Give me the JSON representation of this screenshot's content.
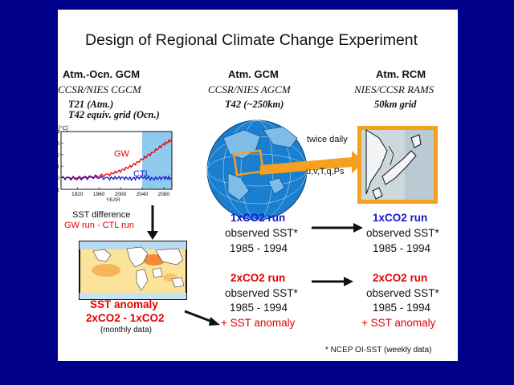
{
  "title": "Design of Regional Climate Change Experiment",
  "columns": [
    {
      "heading": "Atm.-Ocn. GCM",
      "model": "CCSR/NIES CGCM",
      "res1": "T21 (Atm.)",
      "res2": "T42 equiv. grid (Ocn.)"
    },
    {
      "heading": "Atm. GCM",
      "model": "CCSR/NIES AGCM",
      "res1": "T42 (~250km)"
    },
    {
      "heading": "Atm. RCM",
      "model": "NIES/CCSR RAMS",
      "res1": "50km grid"
    }
  ],
  "chart": {
    "unit": "[°C]",
    "y_ticks": [
      "4",
      "3",
      "2",
      "1",
      "0",
      "-1"
    ],
    "x_ticks": [
      "1920",
      "1960",
      "2000",
      "2040",
      "2080"
    ],
    "xlabel": "YEAR",
    "gw_label": "GW",
    "ctl_label": "CTL"
  },
  "chart_data": {
    "type": "line",
    "xlabel": "YEAR",
    "ylabel": "[°C]",
    "xlim": [
      1890,
      2095
    ],
    "ylim": [
      -1,
      4
    ],
    "grid": false,
    "shaded_region_x": [
      2040,
      2095
    ],
    "series": [
      {
        "name": "GW",
        "x": [
          1890,
          1920,
          1950,
          1980,
          2000,
          2020,
          2040,
          2060,
          2080,
          2095
        ],
        "values": [
          0.0,
          0.0,
          0.1,
          0.3,
          0.6,
          1.0,
          1.6,
          2.2,
          2.9,
          3.3
        ]
      },
      {
        "name": "CTL",
        "x": [
          1890,
          1920,
          1950,
          1980,
          2000,
          2020,
          2040,
          2060,
          2080,
          2095
        ],
        "values": [
          0.0,
          -0.1,
          0.05,
          -0.05,
          0.0,
          -0.1,
          0.05,
          -0.1,
          0.0,
          -0.05
        ]
      }
    ]
  },
  "sst_diff": {
    "label": "SST difference",
    "formula": "GW run -  CTL run"
  },
  "sst_anomaly": {
    "title": "SST anomaly",
    "formula": "2xCO2 - 1xCO2",
    "note": "(monthly data)"
  },
  "transfer": {
    "label1": "twice daily",
    "label2": "u,v,T,q,Ps"
  },
  "runs": {
    "gcm_1x": {
      "name": "1xCO2 run",
      "line1": "observed SST*",
      "line2": "1985 - 1994"
    },
    "rcm_1x": {
      "name": "1xCO2 run",
      "line1": "observed SST*",
      "line2": "1985 - 1994"
    },
    "gcm_2x": {
      "name": "2xCO2 run",
      "line1": "observed SST*",
      "line2": "1985 - 1994",
      "line3": "+ SST anomaly"
    },
    "rcm_2x": {
      "name": "2xCO2 run",
      "line1": "observed SST*",
      "line2": "1985 - 1994",
      "line3": "+ SST anomaly"
    }
  },
  "footnote": "* NCEP OI-SST (weekly data)",
  "colors": {
    "background": "#00008b",
    "blue_text": "#1414d2",
    "red_text": "#e60000",
    "box_orange": "#f5a01e",
    "chart_shade": "#8ecbef"
  }
}
